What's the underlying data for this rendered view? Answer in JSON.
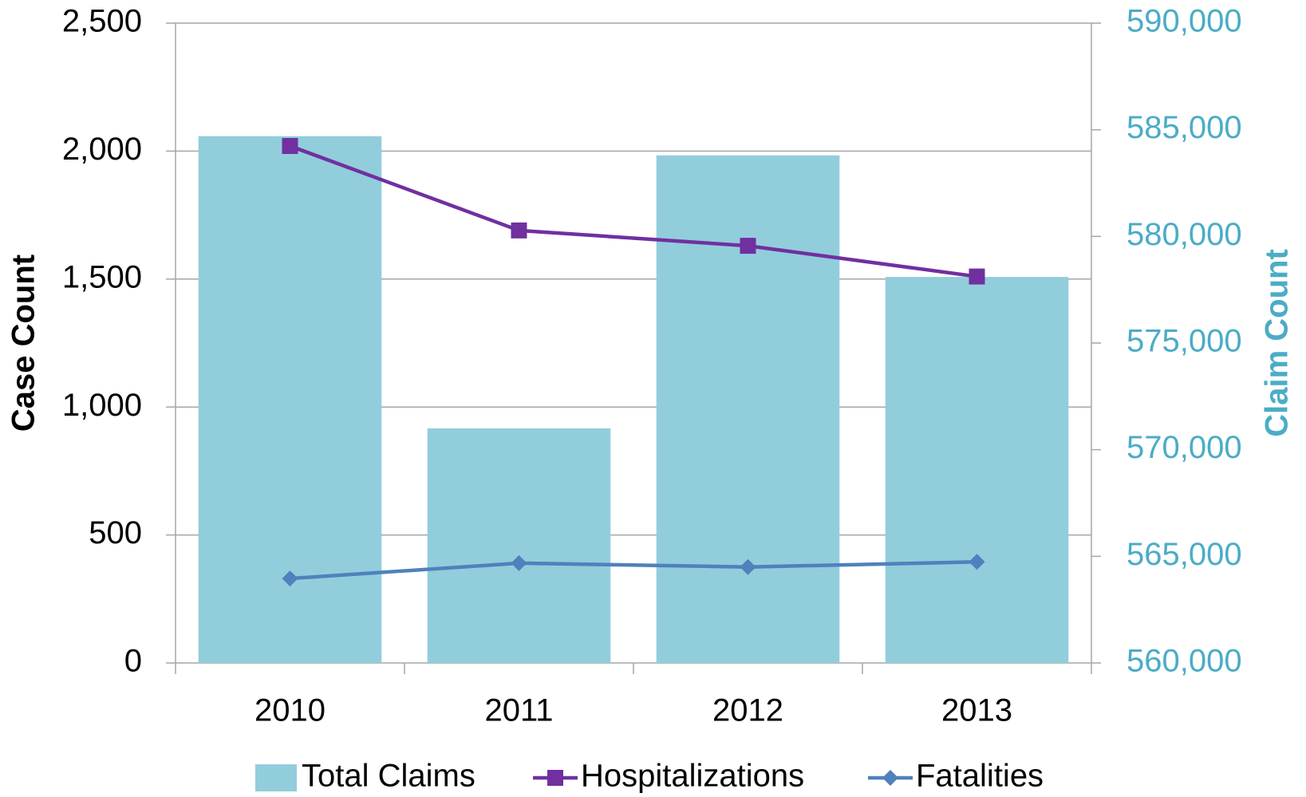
{
  "chart_data": {
    "type": "bar_line",
    "categories": [
      "2010",
      "2011",
      "2012",
      "2013"
    ],
    "ylabel": "Case Count",
    "y2label": "Claim Count",
    "ylim": [
      0,
      2500
    ],
    "yticks": [
      0,
      500,
      {
        "value": 1000,
        "label": "1,000"
      },
      {
        "value": 1500,
        "label": "1,500"
      },
      {
        "value": 2000,
        "label": "2,000"
      },
      {
        "value": 2500,
        "label": "2,500"
      }
    ],
    "y2lim": [
      560000,
      590000
    ],
    "y2ticks": [
      {
        "value": 560000,
        "label": "560,000"
      },
      {
        "value": 565000,
        "label": "565,000"
      },
      {
        "value": 570000,
        "label": "570,000"
      },
      {
        "value": 575000,
        "label": "575,000"
      },
      {
        "value": 580000,
        "label": "580,000"
      },
      {
        "value": 585000,
        "label": "585,000"
      },
      {
        "value": 590000,
        "label": "590,000"
      }
    ],
    "grid": true,
    "legend": "bottom",
    "series": [
      {
        "name": "Total Claims",
        "type": "bar",
        "axis": "y2",
        "color": "#92cddc",
        "values": [
          584700,
          571000,
          583800,
          578100
        ]
      },
      {
        "name": "Hospitalizations",
        "type": "line",
        "marker": "square",
        "color": "#7030a0",
        "values": [
          2020,
          1690,
          1630,
          1510
        ]
      },
      {
        "name": "Fatalities",
        "type": "line",
        "marker": "diamond",
        "color": "#4f81bd",
        "values": [
          330,
          390,
          375,
          395
        ]
      }
    ]
  }
}
